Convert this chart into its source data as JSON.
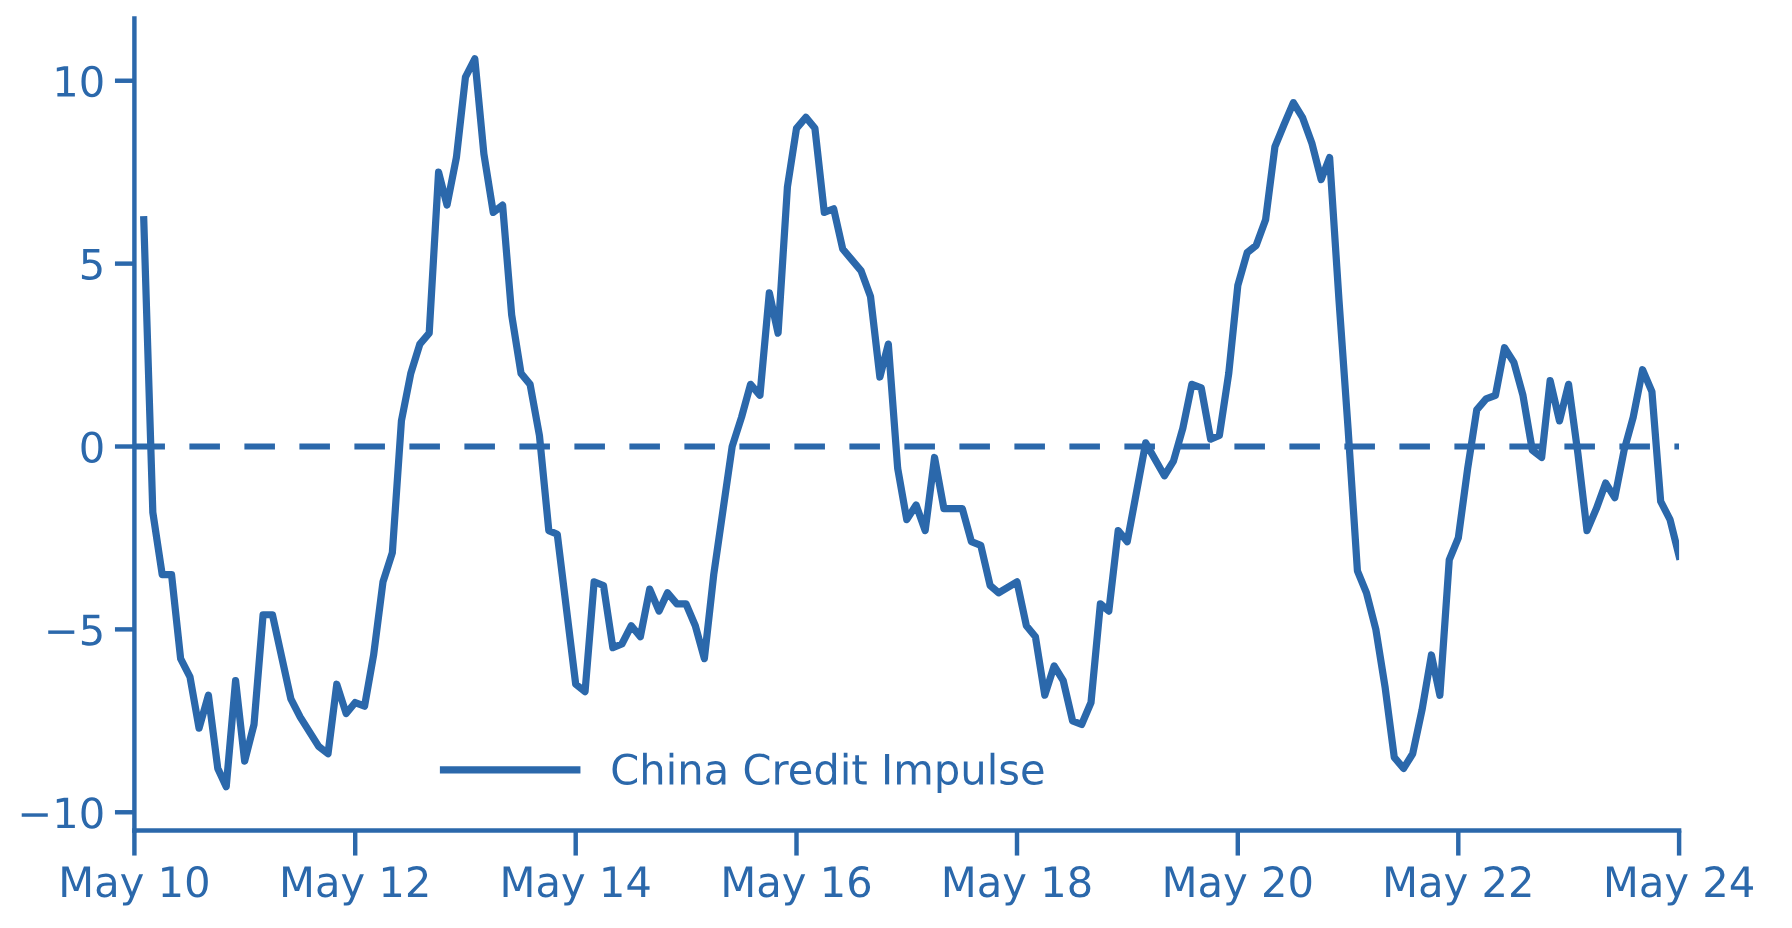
{
  "chart_data": {
    "type": "line",
    "x": [
      "2010-06",
      "2010-07",
      "2010-08",
      "2010-09",
      "2010-10",
      "2010-11",
      "2010-12",
      "2011-01",
      "2011-02",
      "2011-03",
      "2011-04",
      "2011-05",
      "2011-06",
      "2011-07",
      "2011-08",
      "2011-10",
      "2011-11",
      "2012-01",
      "2012-02",
      "2012-03",
      "2012-04",
      "2012-05",
      "2012-06",
      "2012-07",
      "2012-08",
      "2012-09",
      "2012-10",
      "2012-11",
      "2012-12",
      "2013-01",
      "2013-02",
      "2013-03",
      "2013-04",
      "2013-05",
      "2013-06",
      "2013-07",
      "2013-08",
      "2013-09",
      "2013-10",
      "2013-11",
      "2013-12",
      "2014-01",
      "2014-02",
      "2014-03",
      "2014-05",
      "2014-06",
      "2014-07",
      "2014-08",
      "2014-09",
      "2014-10",
      "2014-11",
      "2014-12",
      "2015-01",
      "2015-02",
      "2015-03",
      "2015-04",
      "2015-05",
      "2015-06",
      "2015-07",
      "2015-08",
      "2015-10",
      "2015-11",
      "2015-12",
      "2016-01",
      "2016-02",
      "2016-03",
      "2016-04",
      "2016-05",
      "2016-06",
      "2016-07",
      "2016-08",
      "2016-09",
      "2016-10",
      "2016-12",
      "2017-01",
      "2017-02",
      "2017-03",
      "2017-04",
      "2017-05",
      "2017-06",
      "2017-07",
      "2017-08",
      "2017-09",
      "2017-11",
      "2017-12",
      "2018-01",
      "2018-02",
      "2018-03",
      "2018-05",
      "2018-06",
      "2018-07",
      "2018-08",
      "2018-09",
      "2018-10",
      "2018-11",
      "2018-12",
      "2019-01",
      "2019-02",
      "2019-03",
      "2019-04",
      "2019-05",
      "2019-07",
      "2019-09",
      "2019-10",
      "2019-11",
      "2019-12",
      "2020-01",
      "2020-02",
      "2020-03",
      "2020-04",
      "2020-05",
      "2020-06",
      "2020-07",
      "2020-08",
      "2020-09",
      "2020-10",
      "2020-11",
      "2020-12",
      "2021-01",
      "2021-02",
      "2021-03",
      "2021-04",
      "2021-05",
      "2021-06",
      "2021-07",
      "2021-08",
      "2021-09",
      "2021-10",
      "2021-11",
      "2021-12",
      "2022-01",
      "2022-02",
      "2022-03",
      "2022-04",
      "2022-05",
      "2022-06",
      "2022-07",
      "2022-08",
      "2022-09",
      "2022-10",
      "2022-11",
      "2022-12",
      "2023-01",
      "2023-02",
      "2023-03",
      "2023-04",
      "2023-05",
      "2023-06",
      "2023-07",
      "2023-08",
      "2023-09",
      "2023-10",
      "2023-11",
      "2023-12",
      "2024-01",
      "2024-02",
      "2024-03",
      "2024-04",
      "2024-05"
    ],
    "series": [
      {
        "name": "China Credit Impulse",
        "color": "#2b68ab",
        "values": [
          6.2,
          -1.8,
          -3.5,
          -3.5,
          -5.8,
          -6.3,
          -7.7,
          -6.8,
          -8.8,
          -9.3,
          -6.4,
          -8.6,
          -7.6,
          -4.6,
          -4.6,
          -6.9,
          -7.4,
          -8.2,
          -8.4,
          -6.5,
          -7.3,
          -7.0,
          -7.1,
          -5.7,
          -3.7,
          -2.9,
          0.7,
          2.0,
          2.8,
          3.1,
          7.5,
          6.6,
          7.9,
          10.1,
          10.6,
          8.0,
          6.4,
          6.6,
          3.6,
          2.0,
          1.7,
          0.3,
          -2.3,
          -2.4,
          -6.5,
          -6.7,
          -3.7,
          -3.8,
          -5.5,
          -5.4,
          -4.9,
          -5.2,
          -3.9,
          -4.5,
          -4.0,
          -4.3,
          -4.3,
          -4.9,
          -5.8,
          -3.5,
          0,
          0.8,
          1.7,
          1.4,
          4.2,
          3.1,
          7.1,
          8.7,
          9.0,
          8.7,
          6.4,
          6.5,
          5.4,
          4.8,
          4.1,
          1.9,
          2.8,
          -0.6,
          -2.0,
          -1.6,
          -2.3,
          -0.3,
          -1.7,
          -1.7,
          -2.6,
          -2.7,
          -3.8,
          -4.0,
          -3.7,
          -4.9,
          -5.2,
          -6.8,
          -6.0,
          -6.4,
          -7.5,
          -7.6,
          -7.0,
          -4.3,
          -4.5,
          -2.3,
          -2.6,
          0.1,
          -0.8,
          -0.4,
          0.5,
          1.7,
          1.6,
          0.2,
          0.3,
          2.0,
          4.4,
          5.3,
          5.5,
          6.2,
          8.2,
          8.8,
          9.4,
          9.0,
          8.3,
          7.3,
          7.9,
          4.0,
          0.5,
          -3.4,
          -4.0,
          -5.0,
          -6.6,
          -8.5,
          -8.8,
          -8.4,
          -7.2,
          -5.7,
          -6.8,
          -3.1,
          -2.5,
          -0.6,
          1.0,
          1.3,
          1.4,
          2.7,
          2.3,
          1.4,
          -0.1,
          -0.3,
          1.8,
          0.7,
          1.7,
          -0.2,
          -2.3,
          -1.7,
          -1.0,
          -1.4,
          -0.1,
          0.8,
          2.1,
          1.5,
          -1.5,
          -2.0,
          -3.0
        ]
      }
    ],
    "xlim": [
      "2010-05",
      "2024-05"
    ],
    "xticks": [
      {
        "value": "2010-05",
        "label": "May 10"
      },
      {
        "value": "2012-05",
        "label": "May 12"
      },
      {
        "value": "2014-05",
        "label": "May 14"
      },
      {
        "value": "2016-05",
        "label": "May 16"
      },
      {
        "value": "2018-05",
        "label": "May 18"
      },
      {
        "value": "2020-05",
        "label": "May 20"
      },
      {
        "value": "2022-05",
        "label": "May 22"
      },
      {
        "value": "2024-05",
        "label": "May 24"
      }
    ],
    "ylim": [
      -10.5,
      11.7
    ],
    "yticks": [
      {
        "value": -10,
        "label": "−10"
      },
      {
        "value": -5,
        "label": "−5"
      },
      0,
      5,
      10
    ],
    "ref_lines": [
      {
        "axis": "y",
        "value": 0,
        "color": "#2b68ab",
        "line_style": "dashed"
      }
    ],
    "legend": "bottom",
    "grid": false,
    "marker": "none",
    "line_style": "solid"
  }
}
